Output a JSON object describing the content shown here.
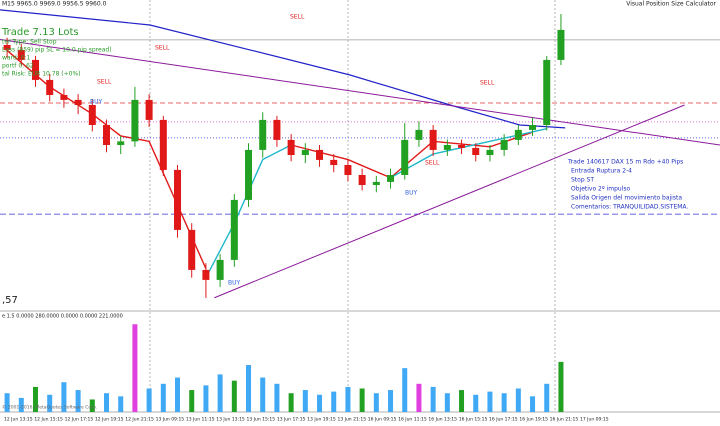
{
  "header": {
    "symbol_line": "M15  9965.0 9969.0 9956.5 9960.0",
    "panel_title": "Visual Position Size Calculator",
    "trade": "Trade 7.13 Lots",
    "info": [
      "ter Type:   Sell Stop",
      "Loss (859) pip SL = 10.0 pip spread)",
      "ward: 0:1",
      "portf 0: 62",
      "tal Risk:   EUR 10.78 (+0%)"
    ],
    "left_label": ",57"
  },
  "annotation": [
    "Trade 140617 DAX 15 m Rdo +40 Pips",
    "Entrada Ruptura 2-4",
    "Stop ST",
    "Objetivo 2º impulso",
    "Salida Origen del movimiento bajista",
    "Comentarios: TRANQUILIDAD.SISTEMA."
  ],
  "signals": {
    "sell": [
      "SELL",
      "SELL",
      "SELL",
      "SELL",
      "SELL"
    ],
    "buy": [
      "BUY",
      "BUY",
      "BUY"
    ]
  },
  "volume_header": "e 1.5 0.0000 280.0000 0.0000 0.0000 221.0000",
  "copyright": "© 2001-2016, MetaQuotes Software Corp.",
  "chart_data": {
    "type": "candlestick",
    "xlim": [
      -0.5,
      50.2
    ],
    "ylim": [
      9815,
      9980
    ],
    "up_color": "#22a022",
    "down_color": "#e01818",
    "time_labels": [
      "12 Jun 13:15",
      "12 Jun 15:15",
      "12 Jun 17:15",
      "12 Jun 19:15",
      "12 Jun 21:15",
      "13 Jun 09:15",
      "13 Jun 11:15",
      "13 Jun 13:15",
      "13 Jun 15:15",
      "13 Jun 17:15",
      "13 Jun 19:15",
      "13 Jun 21:15",
      "16 Jun 09:15",
      "16 Jun 11:15",
      "16 Jun 13:15",
      "16 Jun 15:15",
      "16 Jun 17:15",
      "16 Jun 19:15",
      "16 Jun 21:15",
      "17 Jun 09:15"
    ],
    "open": [
      9958.0,
      9955.3,
      9949.8,
      9938.8,
      9930.5,
      9927.8,
      9925.0,
      9914.0,
      9903.0,
      9905.0,
      9927.8,
      9916.8,
      9889.3,
      9856.3,
      9834.3,
      9828.8,
      9839.8,
      9872.8,
      9900.3,
      9916.8,
      9905.8,
      9897.5,
      9900.3,
      9894.8,
      9892.0,
      9886.5,
      9881.0,
      9882.7,
      9886.5,
      9905.8,
      9911.3,
      9900.3,
      9903.0,
      9901.4,
      9897.5,
      9900.3,
      9905.8,
      9911.3,
      9914.0,
      9949.8
    ],
    "high": [
      9962.0,
      9958.5,
      9952.0,
      9942.0,
      9934.0,
      9931.0,
      9928.0,
      9917.0,
      9908.0,
      9935.0,
      9931.0,
      9919.0,
      9892.0,
      9860.0,
      9838.0,
      9843.0,
      9876.0,
      9904.0,
      9921.0,
      9919.0,
      9909.0,
      9904.0,
      9903.0,
      9898.0,
      9895.0,
      9890.0,
      9886.0,
      9890.0,
      9915.0,
      9916.0,
      9914.0,
      9906.0,
      9906.0,
      9904.0,
      9903.0,
      9909.0,
      9914.0,
      9918.0,
      9952.0,
      9975.0
    ],
    "low": [
      9951.0,
      9946.5,
      9935.0,
      9927.0,
      9923.5,
      9920.0,
      9910.5,
      9899.0,
      9898.0,
      9902.0,
      9913.0,
      9886.0,
      9852.0,
      9830.0,
      9818.9,
      9825.0,
      9836.0,
      9869.0,
      9896.0,
      9902.0,
      9894.0,
      9893.0,
      9891.0,
      9888.0,
      9883.0,
      9878.0,
      9877.0,
      9879.0,
      9884.0,
      9902.0,
      9897.0,
      9897.0,
      9898.0,
      9894.0,
      9894.0,
      9897.0,
      9903.0,
      9908.0,
      9911.0,
      9947.0
    ],
    "close": [
      9955.3,
      9949.8,
      9938.8,
      9930.5,
      9927.8,
      9925.0,
      9914.0,
      9903.0,
      9905.0,
      9927.8,
      9916.8,
      9889.3,
      9856.3,
      9834.3,
      9828.8,
      9839.8,
      9872.8,
      9900.3,
      9916.8,
      9905.8,
      9897.5,
      9900.3,
      9894.8,
      9892.0,
      9886.5,
      9881.0,
      9882.7,
      9886.5,
      9905.8,
      9911.3,
      9900.3,
      9903.0,
      9901.4,
      9897.5,
      9900.3,
      9905.8,
      9911.3,
      9914.0,
      9949.8,
      9966.3
    ],
    "levels": [
      {
        "value": 9960.8,
        "color": "#999999",
        "dash": "none"
      },
      {
        "value": 9926.1,
        "color": "#e03030",
        "dash": "5 3"
      },
      {
        "value": 9915.7,
        "color": "#e040e0",
        "dash": "1 2"
      },
      {
        "value": 9906.9,
        "color": "#3030e0",
        "dash": "1 2"
      },
      {
        "value": 9865.0,
        "color": "#3030e0",
        "dash": "6 3"
      }
    ],
    "overlays": [
      {
        "color": "#2222c8",
        "width": 1.2,
        "x": [
          -0.5,
          10.06,
          17.1,
          24.15,
          31.2,
          36.1,
          39.3
        ],
        "values": [
          9977.3,
          9969,
          9955.3,
          9941.5,
          9925,
          9914,
          9912.4
        ]
      },
      {
        "color": "#8b1a9b",
        "width": 1,
        "x": [
          -0.5,
          50.2
        ],
        "values": [
          9961,
          9903
        ]
      },
      {
        "color": "#8b1a9b",
        "width": 1,
        "x": [
          14.6,
          47.7
        ],
        "values": [
          9819,
          9925
        ]
      },
      {
        "color": "#e01818",
        "width": 1.4,
        "x": [
          0,
          3,
          6,
          8,
          10,
          12,
          14
        ],
        "values": [
          9955,
          9935,
          9920,
          9908,
          9905,
          9870,
          9835
        ]
      },
      {
        "color": "#20b8c8",
        "width": 1.4,
        "x": [
          14,
          16,
          18,
          20
        ],
        "values": [
          9830,
          9860,
          9895,
          9903
        ]
      },
      {
        "color": "#e01818",
        "width": 1.4,
        "x": [
          20,
          24,
          27,
          30,
          34,
          37
        ],
        "values": [
          9903,
          9895,
          9885,
          9905,
          9902,
          9910
        ]
      },
      {
        "color": "#20b8c8",
        "width": 1.4,
        "x": [
          27,
          30,
          34,
          38
        ],
        "values": [
          9885,
          9898,
          9905,
          9912
        ]
      }
    ],
    "volume": {
      "ylim": [
        0,
        300
      ],
      "values": [
        60,
        45,
        80,
        55,
        95,
        70,
        40,
        60,
        50,
        280,
        75,
        90,
        110,
        70,
        85,
        120,
        100,
        150,
        110,
        90,
        60,
        70,
        55,
        65,
        80,
        75,
        60,
        70,
        140,
        90,
        80,
        60,
        70,
        55,
        65,
        60,
        75,
        50,
        90,
        160
      ],
      "colors": [
        "#3fa9f5",
        "#3fa9f5",
        "#22a022",
        "#3fa9f5",
        "#3fa9f5",
        "#3fa9f5",
        "#22a022",
        "#3fa9f5",
        "#3fa9f5",
        "#e040e0",
        "#3fa9f5",
        "#3fa9f5",
        "#3fa9f5",
        "#22a022",
        "#3fa9f5",
        "#3fa9f5",
        "#22a022",
        "#3fa9f5",
        "#3fa9f5",
        "#3fa9f5",
        "#22a022",
        "#3fa9f5",
        "#3fa9f5",
        "#3fa9f5",
        "#3fa9f5",
        "#22a022",
        "#3fa9f5",
        "#3fa9f5",
        "#3fa9f5",
        "#e040e0",
        "#3fa9f5",
        "#3fa9f5",
        "#22a022",
        "#3fa9f5",
        "#3fa9f5",
        "#3fa9f5",
        "#3fa9f5",
        "#3fa9f5",
        "#3fa9f5",
        "#22a022"
      ]
    }
  }
}
